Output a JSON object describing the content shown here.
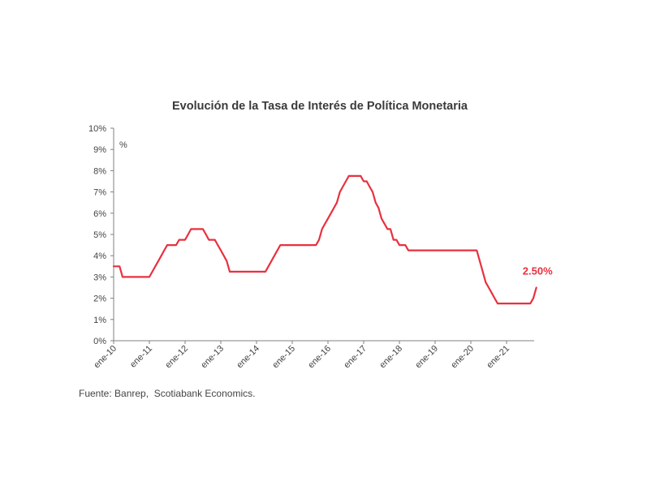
{
  "chart_data": {
    "type": "line",
    "title": "Evolución de la Tasa de Interés de Política Monetaria",
    "ylabel": "%",
    "xlabel": "",
    "ylim": [
      0,
      10
    ],
    "y_tick_labels": [
      "0%",
      "1%",
      "2%",
      "3%",
      "4%",
      "5%",
      "6%",
      "7%",
      "8%",
      "9%",
      "10%"
    ],
    "x_range": [
      "2010-01",
      "2021-10"
    ],
    "x_tick_labels": [
      "ene-10",
      "ene-11",
      "ene-12",
      "ene-13",
      "ene-14",
      "ene-15",
      "ene-16",
      "ene-17",
      "ene-18",
      "ene-19",
      "ene-20",
      "ene-21"
    ],
    "x_tick_dates": [
      "2010-01",
      "2011-01",
      "2012-01",
      "2013-01",
      "2014-01",
      "2015-01",
      "2016-01",
      "2017-01",
      "2018-01",
      "2019-01",
      "2020-01",
      "2021-01"
    ],
    "grid": false,
    "legend": "none",
    "series": [
      {
        "color": "#e8313f",
        "points": [
          [
            "2010-01",
            3.5
          ],
          [
            "2010-03",
            3.5
          ],
          [
            "2010-04",
            3.0
          ],
          [
            "2011-01",
            3.0
          ],
          [
            "2011-03",
            3.5
          ],
          [
            "2011-04",
            3.75
          ],
          [
            "2011-05",
            4.0
          ],
          [
            "2011-06",
            4.25
          ],
          [
            "2011-07",
            4.5
          ],
          [
            "2011-09",
            4.5
          ],
          [
            "2011-10",
            4.5
          ],
          [
            "2011-11",
            4.75
          ],
          [
            "2012-01",
            4.75
          ],
          [
            "2012-02",
            5.0
          ],
          [
            "2012-03",
            5.25
          ],
          [
            "2012-07",
            5.25
          ],
          [
            "2012-08",
            5.0
          ],
          [
            "2012-09",
            4.75
          ],
          [
            "2012-10",
            4.75
          ],
          [
            "2012-11",
            4.75
          ],
          [
            "2012-12",
            4.5
          ],
          [
            "2013-01",
            4.25
          ],
          [
            "2013-02",
            4.0
          ],
          [
            "2013-03",
            3.75
          ],
          [
            "2013-04",
            3.25
          ],
          [
            "2014-03",
            3.25
          ],
          [
            "2014-04",
            3.25
          ],
          [
            "2014-05",
            3.5
          ],
          [
            "2014-06",
            3.75
          ],
          [
            "2014-07",
            4.0
          ],
          [
            "2014-08",
            4.25
          ],
          [
            "2014-09",
            4.5
          ],
          [
            "2015-08",
            4.5
          ],
          [
            "2015-09",
            4.5
          ],
          [
            "2015-10",
            4.75
          ],
          [
            "2015-11",
            5.25
          ],
          [
            "2015-12",
            5.5
          ],
          [
            "2016-01",
            5.75
          ],
          [
            "2016-02",
            6.0
          ],
          [
            "2016-03",
            6.25
          ],
          [
            "2016-04",
            6.5
          ],
          [
            "2016-05",
            7.0
          ],
          [
            "2016-06",
            7.25
          ],
          [
            "2016-07",
            7.5
          ],
          [
            "2016-08",
            7.75
          ],
          [
            "2016-12",
            7.75
          ],
          [
            "2017-01",
            7.5
          ],
          [
            "2017-02",
            7.5
          ],
          [
            "2017-03",
            7.25
          ],
          [
            "2017-04",
            7.0
          ],
          [
            "2017-05",
            6.5
          ],
          [
            "2017-06",
            6.25
          ],
          [
            "2017-07",
            5.75
          ],
          [
            "2017-08",
            5.5
          ],
          [
            "2017-09",
            5.25
          ],
          [
            "2017-10",
            5.25
          ],
          [
            "2017-11",
            4.75
          ],
          [
            "2017-12",
            4.75
          ],
          [
            "2018-01",
            4.5
          ],
          [
            "2018-02",
            4.5
          ],
          [
            "2018-03",
            4.5
          ],
          [
            "2018-04",
            4.25
          ],
          [
            "2020-03",
            4.25
          ],
          [
            "2020-04",
            3.75
          ],
          [
            "2020-05",
            3.25
          ],
          [
            "2020-06",
            2.75
          ],
          [
            "2020-07",
            2.5
          ],
          [
            "2020-08",
            2.25
          ],
          [
            "2020-09",
            2.0
          ],
          [
            "2020-10",
            1.75
          ],
          [
            "2021-08",
            1.75
          ],
          [
            "2021-09",
            1.75
          ],
          [
            "2021-10",
            2.0
          ],
          [
            "2021-11",
            2.5
          ]
        ]
      }
    ],
    "annotations": [
      {
        "text": "2.50%",
        "color": "#e8313f"
      }
    ]
  },
  "source": "Fuente: Banrep,  Scotiabank Economics."
}
